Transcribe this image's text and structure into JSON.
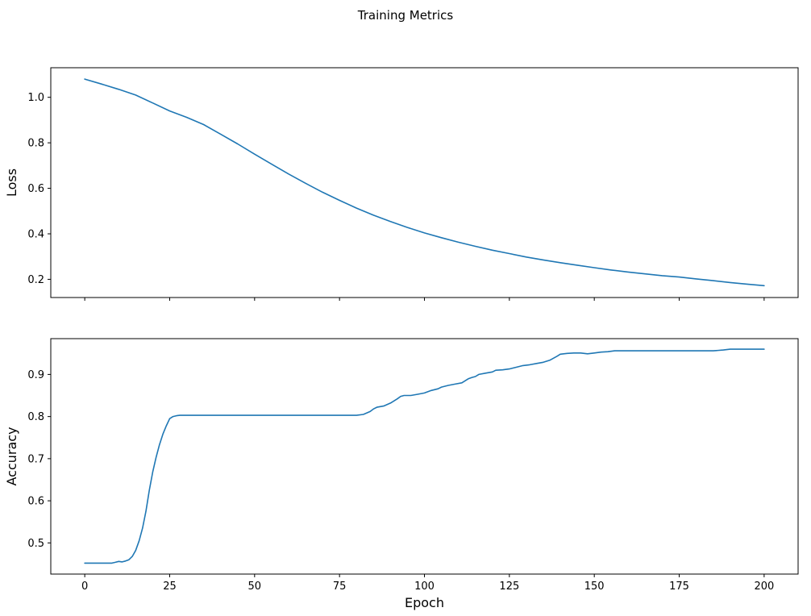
{
  "title": "Training Metrics",
  "figure": {
    "background_color": "#ffffff",
    "line_color": "#1f77b4"
  },
  "chart_data": [
    {
      "type": "line",
      "title": "",
      "xlabel": "",
      "ylabel": "Loss",
      "legend": "none",
      "grid": false,
      "xlim": [
        -10,
        210
      ],
      "ylim": [
        0.12,
        1.13
      ],
      "xticks": [
        0,
        25,
        50,
        75,
        100,
        125,
        150,
        175,
        200
      ],
      "yticks": [
        0.2,
        0.4,
        0.6,
        0.8,
        1.0
      ],
      "show_xtick_labels": false,
      "line_color": "#1f77b4",
      "x": [
        0,
        5,
        10,
        15,
        20,
        25,
        30,
        35,
        40,
        45,
        50,
        55,
        60,
        65,
        70,
        75,
        80,
        85,
        90,
        95,
        100,
        105,
        110,
        115,
        120,
        125,
        130,
        135,
        140,
        145,
        150,
        155,
        160,
        165,
        170,
        175,
        180,
        185,
        190,
        195,
        200
      ],
      "y": [
        1.08,
        1.058,
        1.035,
        1.01,
        0.975,
        0.94,
        0.912,
        0.88,
        0.838,
        0.795,
        0.75,
        0.706,
        0.663,
        0.622,
        0.583,
        0.547,
        0.513,
        0.482,
        0.454,
        0.428,
        0.404,
        0.383,
        0.363,
        0.345,
        0.328,
        0.313,
        0.298,
        0.285,
        0.273,
        0.262,
        0.251,
        0.241,
        0.232,
        0.224,
        0.216,
        0.21,
        0.202,
        0.194,
        0.186,
        0.179,
        0.172
      ]
    },
    {
      "type": "line",
      "title": "",
      "xlabel": "Epoch",
      "ylabel": "Accuracy",
      "legend": "none",
      "grid": false,
      "xlim": [
        -10,
        210
      ],
      "ylim": [
        0.426,
        0.985
      ],
      "xticks": [
        0,
        25,
        50,
        75,
        100,
        125,
        150,
        175,
        200
      ],
      "yticks": [
        0.5,
        0.6,
        0.7,
        0.8,
        0.9
      ],
      "show_xtick_labels": true,
      "line_color": "#1f77b4",
      "x": [
        0,
        2,
        4,
        6,
        8,
        9,
        10,
        11,
        12,
        13,
        14,
        15,
        16,
        17,
        18,
        19,
        20,
        21,
        22,
        23,
        24,
        25,
        26,
        27,
        28,
        30,
        35,
        40,
        45,
        50,
        55,
        60,
        65,
        70,
        75,
        80,
        82,
        84,
        85,
        86,
        88,
        90,
        92,
        93,
        94,
        96,
        98,
        100,
        102,
        104,
        105,
        107,
        109,
        111,
        113,
        114,
        115,
        116,
        118,
        120,
        121,
        123,
        125,
        127,
        129,
        131,
        133,
        135,
        137,
        139,
        140,
        142,
        144,
        146,
        148,
        150,
        152,
        154,
        156,
        160,
        165,
        170,
        175,
        180,
        185,
        188,
        190,
        195,
        200
      ],
      "y": [
        0.452,
        0.452,
        0.452,
        0.452,
        0.452,
        0.454,
        0.456,
        0.455,
        0.457,
        0.46,
        0.468,
        0.482,
        0.505,
        0.535,
        0.575,
        0.625,
        0.668,
        0.703,
        0.733,
        0.758,
        0.778,
        0.795,
        0.8,
        0.802,
        0.803,
        0.803,
        0.803,
        0.803,
        0.803,
        0.803,
        0.803,
        0.803,
        0.803,
        0.803,
        0.803,
        0.803,
        0.805,
        0.812,
        0.818,
        0.822,
        0.825,
        0.832,
        0.842,
        0.848,
        0.85,
        0.85,
        0.853,
        0.856,
        0.862,
        0.866,
        0.87,
        0.874,
        0.877,
        0.88,
        0.89,
        0.893,
        0.895,
        0.9,
        0.903,
        0.906,
        0.91,
        0.911,
        0.913,
        0.917,
        0.921,
        0.923,
        0.926,
        0.929,
        0.934,
        0.943,
        0.948,
        0.95,
        0.951,
        0.951,
        0.949,
        0.951,
        0.953,
        0.954,
        0.956,
        0.956,
        0.956,
        0.956,
        0.956,
        0.956,
        0.956,
        0.958,
        0.96,
        0.96,
        0.96
      ]
    }
  ]
}
